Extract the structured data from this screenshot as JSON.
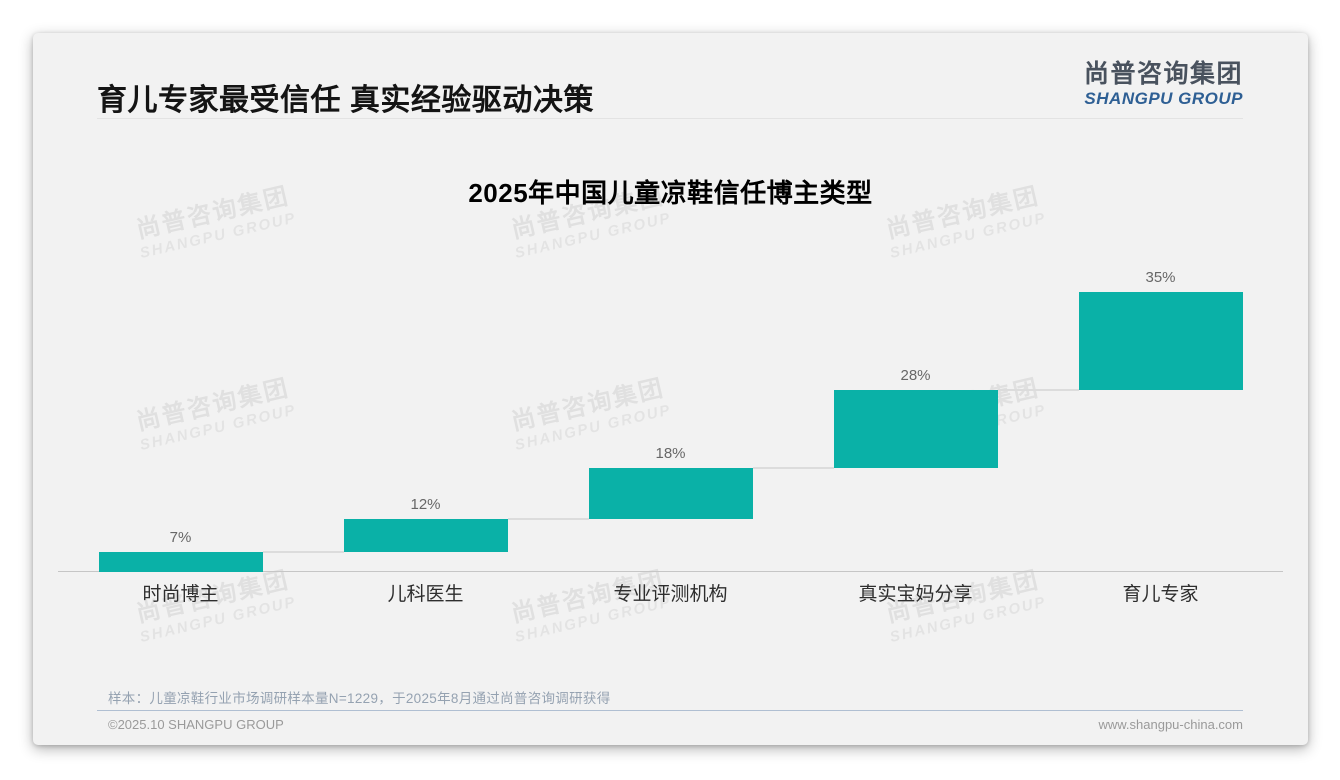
{
  "page": {
    "header": {
      "title": "育儿专家最受信任 真实经验驱动决策",
      "logo": {
        "cn": "尚普咨询集团",
        "en": "SHANGPU GROUP"
      }
    },
    "watermark": {
      "cn": "尚普咨询集团",
      "en": "SHANGPU GROUP"
    },
    "footer": {
      "note": "样本：儿童凉鞋行业市场调研样本量N=1229，于2025年8月通过尚普咨询调研获得",
      "copyright": "©2025.10 SHANGPU GROUP",
      "website": "www.shangpu-china.com"
    }
  },
  "chart_data": {
    "type": "bar",
    "subtype": "waterfall",
    "title": "2025年中国儿童凉鞋信任博主类型",
    "categories": [
      "时尚博主",
      "儿科医生",
      "专业评测机构",
      "真实宝妈分享",
      "育儿专家"
    ],
    "values": [
      7,
      12,
      18,
      28,
      35
    ],
    "value_labels": [
      "7%",
      "12%",
      "18%",
      "28%",
      "35%"
    ],
    "cumulative_start": [
      0,
      7,
      19,
      37,
      65
    ],
    "unit": "%",
    "ylim": [
      0,
      100
    ],
    "total": 100,
    "bar_color": "#0ab1a7",
    "connector_color": "#dcdcdc",
    "grid": false,
    "legend": false,
    "xlabel": "",
    "ylabel": ""
  }
}
